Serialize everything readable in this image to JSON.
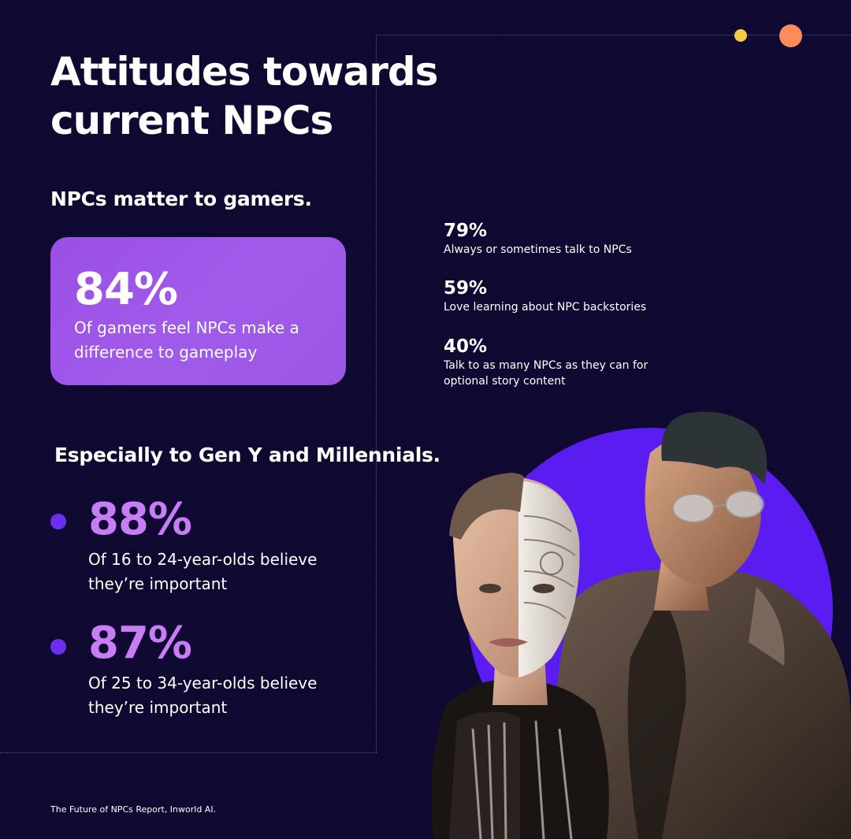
{
  "colors": {
    "background": "#0f0830",
    "card": "#9b4fe6",
    "accent_value": "#c77ef5",
    "bullet": "#6a2ef0",
    "circle": "#5a1cf0",
    "dot_yellow": "#f7c948",
    "dot_orange": "#ff8a5c"
  },
  "header": {
    "title": "Attitudes towards current NPCs"
  },
  "section1": {
    "heading": "NPCs matter to gamers.",
    "highlight": {
      "value": "84%",
      "description": "Of gamers feel NPCs make a difference to gameplay"
    },
    "stats": [
      {
        "value": "79%",
        "description": "Always or sometimes talk to NPCs"
      },
      {
        "value": "59%",
        "description": "Love learning about NPC backstories"
      },
      {
        "value": "40%",
        "description": "Talk to as many NPCs as they can for optional story content"
      }
    ]
  },
  "section2": {
    "heading": "Especially to Gen Y and Millennials.",
    "items": [
      {
        "value": "88%",
        "description": "Of 16 to 24-year-olds believe they’re important"
      },
      {
        "value": "87%",
        "description": "Of 25 to 34-year-olds believe they’re important"
      }
    ]
  },
  "footer": {
    "source": "The Future of NPCs Report, Inworld AI."
  },
  "illustration": {
    "subject": "ai-generated-portraits"
  }
}
